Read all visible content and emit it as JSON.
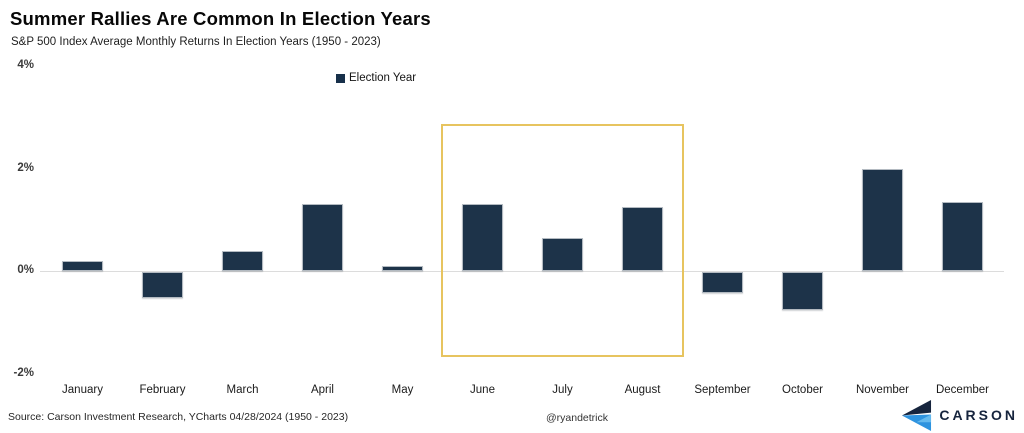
{
  "header": {
    "title": "Summer Rallies Are Common In Election Years",
    "subtitle": "S&P 500 Index Average Monthly Returns In Election Years (1950 - 2023)"
  },
  "chart_data": {
    "type": "bar",
    "title": "Summer Rallies Are Common In Election Years",
    "subtitle": "S&P 500 Index Average Monthly Returns In Election Years (1950 - 2023)",
    "series_name": "Election Year",
    "categories": [
      "January",
      "February",
      "March",
      "April",
      "May",
      "June",
      "July",
      "August",
      "September",
      "October",
      "November",
      "December"
    ],
    "values": [
      0.2,
      -0.5,
      0.4,
      1.3,
      0.1,
      1.3,
      0.65,
      1.25,
      -0.4,
      -0.75,
      2.0,
      1.35
    ],
    "unit": "%",
    "ylim": [
      -2,
      4
    ],
    "yticks": [
      {
        "label": "4%",
        "value": 4
      },
      {
        "label": "2%",
        "value": 2
      },
      {
        "label": "0%",
        "value": 0
      },
      {
        "label": "-2%",
        "value": -2
      }
    ],
    "gridlines": "zero-line-only",
    "legend_position": "top-center",
    "bar_color": "#1d3349",
    "highlight": {
      "from": "June",
      "to": "August",
      "box_color": "#e7c45f"
    }
  },
  "footer": {
    "source": "Source: Carson Investment Research, YCharts 04/28/2024 (1950 - 2023)",
    "handle": "@ryandetrick"
  },
  "brand": {
    "name": "CARSON",
    "icon": "carson-chevron-logo",
    "navy": "#16243d",
    "blue": "#2e93df"
  }
}
